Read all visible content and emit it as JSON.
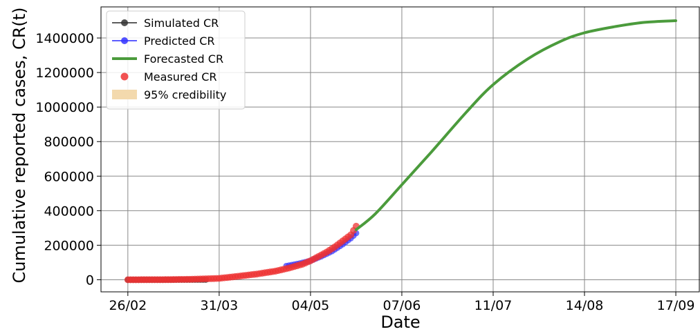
{
  "chart_data": {
    "type": "line",
    "xlabel": "Date",
    "ylabel": "Cumulative reported cases, CR(t)",
    "x_ticks": [
      "26/02",
      "31/03",
      "04/05",
      "07/06",
      "11/07",
      "14/08",
      "17/09"
    ],
    "y_ticks": [
      "0",
      "200000",
      "400000",
      "600000",
      "800000",
      "1000000",
      "1200000",
      "1400000"
    ],
    "y_tick_values": [
      0,
      200000,
      400000,
      600000,
      800000,
      1000000,
      1200000,
      1400000
    ],
    "xlim": [
      "2020-02-16",
      "2020-09-26"
    ],
    "ylim": [
      -70000,
      1580000
    ],
    "grid": true,
    "legend_position": "top-left",
    "legend": [
      {
        "name": "Simulated CR",
        "marker": "line-dot",
        "color": "#333333"
      },
      {
        "name": "Predicted CR",
        "marker": "line-dot",
        "color": "#3333ff"
      },
      {
        "name": "Forecasted CR",
        "marker": "line",
        "color": "#4b9b3c"
      },
      {
        "name": "Measured CR",
        "marker": "dot",
        "color": "#ee3333"
      },
      {
        "name": "95% credibility",
        "marker": "patch",
        "color": "#f3d9ad"
      }
    ],
    "series": [
      {
        "name": "Simulated CR",
        "color": "#333333",
        "x": [
          "2020-02-26",
          "2020-03-02",
          "2020-03-10",
          "2020-03-18",
          "2020-03-26"
        ],
        "y": [
          0,
          0,
          0,
          0,
          0
        ]
      },
      {
        "name": "Predicted CR",
        "color": "#3333ff",
        "x": [
          "2020-04-25",
          "2020-04-30",
          "2020-05-04",
          "2020-05-08",
          "2020-05-12",
          "2020-05-16",
          "2020-05-19",
          "2020-05-21"
        ],
        "y": [
          80000,
          95000,
          110000,
          135000,
          165000,
          205000,
          240000,
          270000
        ]
      },
      {
        "name": "Forecasted CR",
        "color": "#4b9b3c",
        "x": [
          "2020-05-21",
          "2020-05-28",
          "2020-06-07",
          "2020-06-18",
          "2020-07-01",
          "2020-07-11",
          "2020-07-24",
          "2020-08-05",
          "2020-08-14",
          "2020-08-25",
          "2020-09-05",
          "2020-09-17"
        ],
        "y": [
          290000,
          380000,
          550000,
          740000,
          970000,
          1130000,
          1280000,
          1380000,
          1430000,
          1465000,
          1490000,
          1500000
        ]
      },
      {
        "name": "Measured CR",
        "color": "#ee3333",
        "x": [
          "2020-02-26",
          "2020-03-10",
          "2020-03-20",
          "2020-03-31",
          "2020-04-07",
          "2020-04-14",
          "2020-04-21",
          "2020-04-26",
          "2020-05-01",
          "2020-05-04",
          "2020-05-07",
          "2020-05-10",
          "2020-05-13",
          "2020-05-16",
          "2020-05-19",
          "2020-05-21"
        ],
        "y": [
          0,
          500,
          2500,
          8000,
          20000,
          33000,
          50000,
          68000,
          90000,
          110000,
          135000,
          160000,
          190000,
          225000,
          260000,
          310000
        ]
      }
    ]
  }
}
